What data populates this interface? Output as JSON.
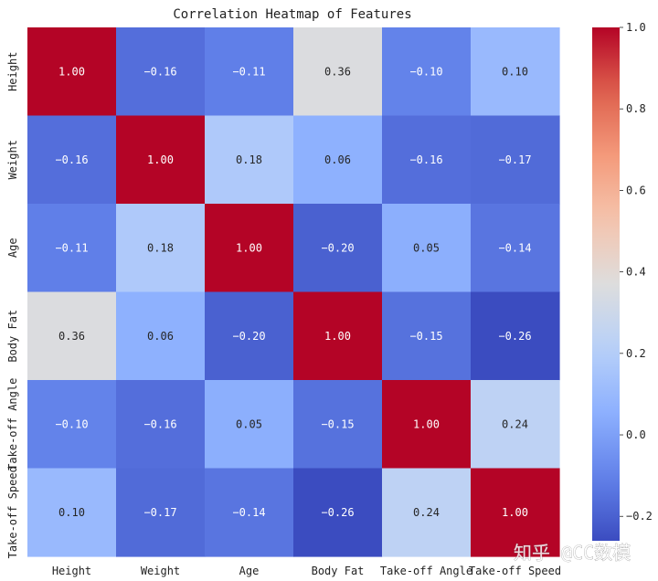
{
  "chart_data": {
    "type": "heatmap",
    "title": "Correlation Heatmap of Features",
    "labels": [
      "Height",
      "Weight",
      "Age",
      "Body Fat",
      "Take-off Angle",
      "Take-off Speed"
    ],
    "matrix": [
      [
        1.0,
        -0.16,
        -0.11,
        0.36,
        -0.1,
        0.1
      ],
      [
        -0.16,
        1.0,
        0.18,
        0.06,
        -0.16,
        -0.17
      ],
      [
        -0.11,
        0.18,
        1.0,
        -0.2,
        0.05,
        -0.14
      ],
      [
        0.36,
        0.06,
        -0.2,
        1.0,
        -0.15,
        -0.26
      ],
      [
        -0.1,
        -0.16,
        0.05,
        -0.15,
        1.0,
        0.24
      ],
      [
        0.1,
        -0.17,
        -0.14,
        -0.26,
        0.24,
        1.0
      ]
    ],
    "annotation_format": "2 decimals",
    "colormap": "coolwarm",
    "colorbar": {
      "range": [
        -0.26,
        1.0
      ],
      "ticks": [
        1.0,
        0.8,
        0.6,
        0.4,
        0.2,
        0.0,
        -0.2
      ],
      "tick_labels": [
        "1.0",
        "0.8",
        "0.6",
        "0.4",
        "0.2",
        "0.0",
        "−0.2"
      ],
      "placement": "right"
    }
  },
  "watermark": {
    "text": "知乎 @CC数模"
  }
}
